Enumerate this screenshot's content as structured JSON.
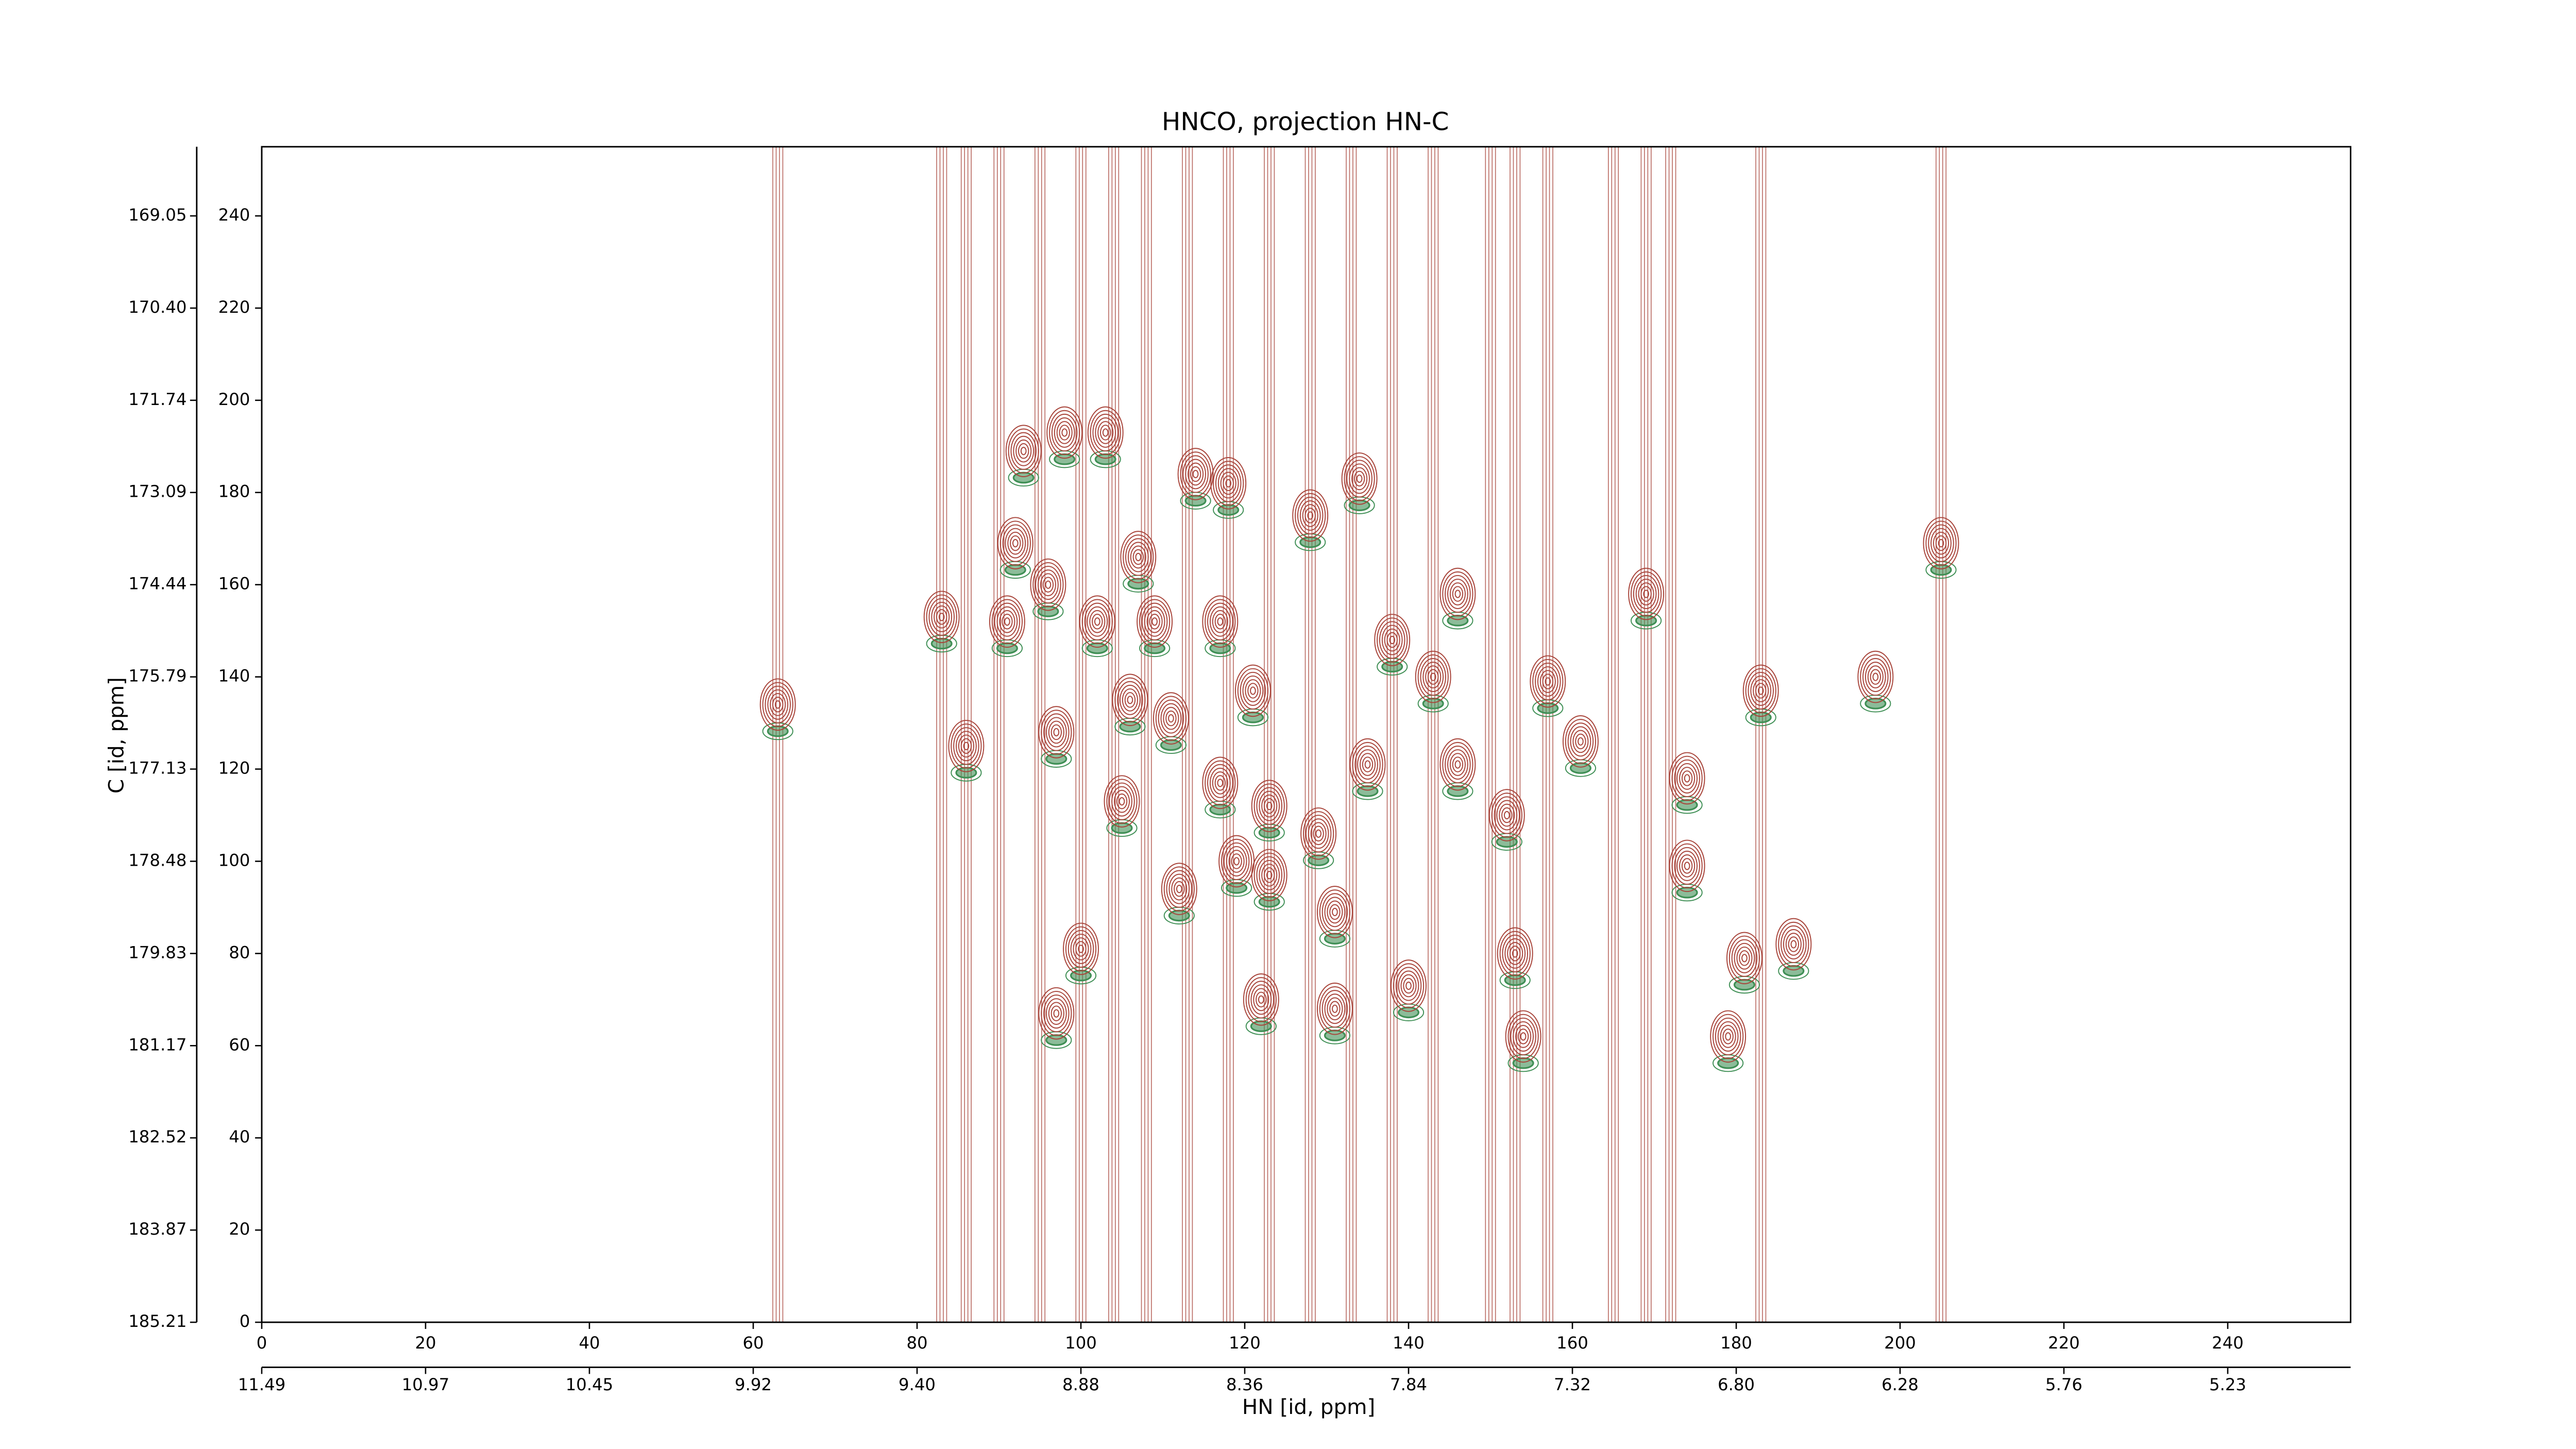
{
  "chart_data": {
    "type": "contour",
    "title": "HNCO, projection HN-C",
    "xlabel": "HN [id, ppm]",
    "ylabel": "C [id, ppm]",
    "xlim": [
      0,
      255
    ],
    "ylim": [
      0,
      255
    ],
    "xticks": [
      0,
      20,
      40,
      60,
      80,
      100,
      120,
      140,
      160,
      180,
      200,
      220,
      240
    ],
    "yticks": [
      0,
      20,
      40,
      60,
      80,
      100,
      120,
      140,
      160,
      180,
      200,
      220,
      240
    ],
    "x2ticks": [
      {
        "value": 0,
        "label": "11.49"
      },
      {
        "value": 20,
        "label": "10.97"
      },
      {
        "value": 40,
        "label": "10.45"
      },
      {
        "value": 60,
        "label": "9.92"
      },
      {
        "value": 80,
        "label": "9.40"
      },
      {
        "value": 100,
        "label": "8.88"
      },
      {
        "value": 120,
        "label": "8.36"
      },
      {
        "value": 140,
        "label": "7.84"
      },
      {
        "value": 160,
        "label": "7.32"
      },
      {
        "value": 180,
        "label": "6.80"
      },
      {
        "value": 200,
        "label": "6.28"
      },
      {
        "value": 220,
        "label": "5.76"
      },
      {
        "value": 240,
        "label": "5.23"
      }
    ],
    "y2ticks": [
      {
        "value": 0,
        "label": "185.21"
      },
      {
        "value": 20,
        "label": "183.87"
      },
      {
        "value": 40,
        "label": "182.52"
      },
      {
        "value": 60,
        "label": "181.17"
      },
      {
        "value": 80,
        "label": "179.83"
      },
      {
        "value": 100,
        "label": "178.48"
      },
      {
        "value": 120,
        "label": "177.13"
      },
      {
        "value": 140,
        "label": "175.79"
      },
      {
        "value": 160,
        "label": "174.44"
      },
      {
        "value": 180,
        "label": "173.09"
      },
      {
        "value": 200,
        "label": "171.74"
      },
      {
        "value": 220,
        "label": "170.40"
      },
      {
        "value": 240,
        "label": "169.05"
      }
    ],
    "positive_color": "#a8443a",
    "negative_color": "#3f8f55",
    "peaks": {
      "x": [
        63,
        93,
        98,
        103,
        114,
        118,
        128,
        134,
        92,
        107,
        83,
        91,
        96,
        102,
        109,
        117,
        138,
        146,
        169,
        86,
        97,
        106,
        111,
        121,
        143,
        157,
        161,
        183,
        205,
        197,
        117,
        123,
        105,
        135,
        146,
        152,
        174,
        112,
        119,
        129,
        123,
        131,
        100,
        97,
        122,
        131,
        174,
        179,
        187,
        181,
        154,
        140,
        153
      ],
      "y": [
        134,
        189,
        193,
        193,
        184,
        182,
        175,
        183,
        169,
        166,
        153,
        152,
        160,
        152,
        152,
        152,
        148,
        158,
        158,
        125,
        128,
        135,
        131,
        137,
        140,
        139,
        126,
        137,
        169,
        140,
        117,
        112,
        113,
        121,
        121,
        110,
        118,
        94,
        100,
        106,
        97,
        89,
        81,
        67,
        70,
        68,
        99,
        62,
        82,
        79,
        62,
        73,
        80
      ]
    },
    "ridges": [
      63,
      83,
      86,
      90,
      95,
      100,
      104,
      108,
      113,
      118,
      123,
      128,
      133,
      138,
      143,
      150,
      153,
      157,
      165,
      169,
      172,
      183,
      205
    ]
  }
}
